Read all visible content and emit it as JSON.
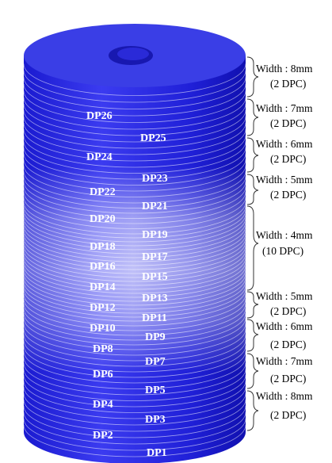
{
  "colors": {
    "top": "#3a3de0",
    "body": "#2626de",
    "shade": "#1212b8",
    "highlight": "#c9c9ff",
    "stripe": "#ffffff"
  },
  "cylinder": {
    "dp_labels": [
      "DP1",
      "DP2",
      "DP3",
      "DP4",
      "DP5",
      "DP6",
      "DP7",
      "DP8",
      "DP9",
      "DP10",
      "DP11",
      "DP12",
      "DP13",
      "DP14",
      "DP15",
      "DP16",
      "DP17",
      "DP18",
      "DP19",
      "DP20",
      "DP21",
      "DP22",
      "DP23",
      "DP24",
      "DP25",
      "DP26"
    ]
  },
  "groups": [
    {
      "name": "group-top-8mm",
      "width": "Width : 8mm",
      "count": "(2 DPC)"
    },
    {
      "name": "group-top-7mm",
      "width": "Width : 7mm",
      "count": "(2 DPC)"
    },
    {
      "name": "group-top-6mm",
      "width": "Width : 6mm",
      "count": "(2 DPC)"
    },
    {
      "name": "group-top-5mm",
      "width": "Width : 5mm",
      "count": "(2 DPC)"
    },
    {
      "name": "group-middle-4mm",
      "width": "Width : 4mm",
      "count": "(10 DPC)"
    },
    {
      "name": "group-bottom-5mm",
      "width": "Width : 5mm",
      "count": "(2 DPC)"
    },
    {
      "name": "group-bottom-6mm",
      "width": "Width : 6mm",
      "count": "(2 DPC)"
    },
    {
      "name": "group-bottom-7mm",
      "width": "Width : 7mm",
      "count": "(2 DPC)"
    },
    {
      "name": "group-bottom-8mm",
      "width": "Width : 8mm",
      "count": "(2 DPC)"
    }
  ]
}
